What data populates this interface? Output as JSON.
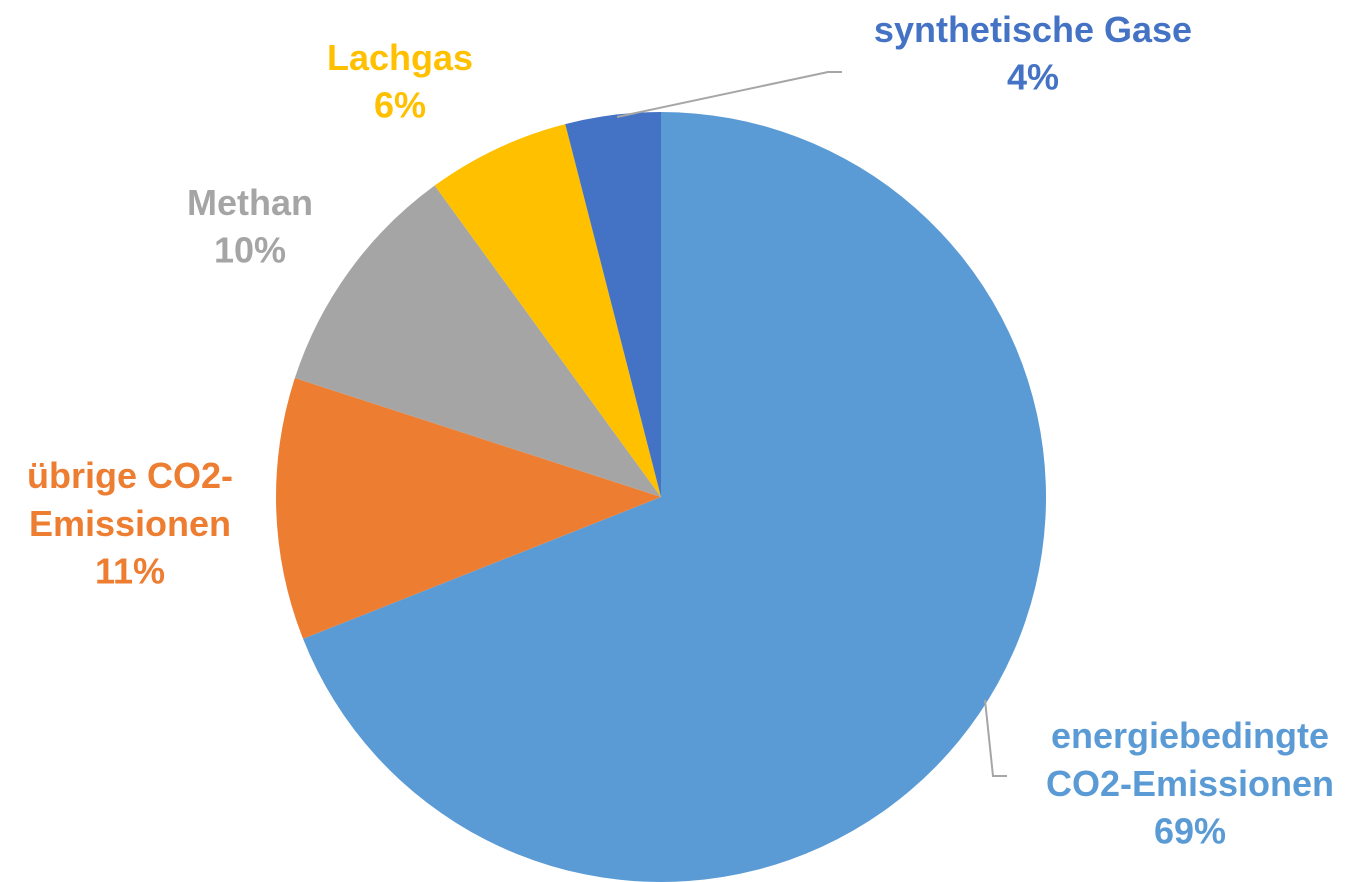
{
  "chart_data": {
    "type": "pie",
    "categories": [
      "energiebedingte\nCO2-Emissionen",
      "übrige CO2-\nEmissionen",
      "Methan",
      "Lachgas",
      "synthetische Gase"
    ],
    "values": [
      69,
      11,
      10,
      6,
      4
    ],
    "value_labels": [
      "69%",
      "11%",
      "10%",
      "6%",
      "4%"
    ],
    "colors": [
      "#5b9bd5",
      "#ed7d31",
      "#a5a5a5",
      "#ffc000",
      "#4472c4"
    ]
  }
}
